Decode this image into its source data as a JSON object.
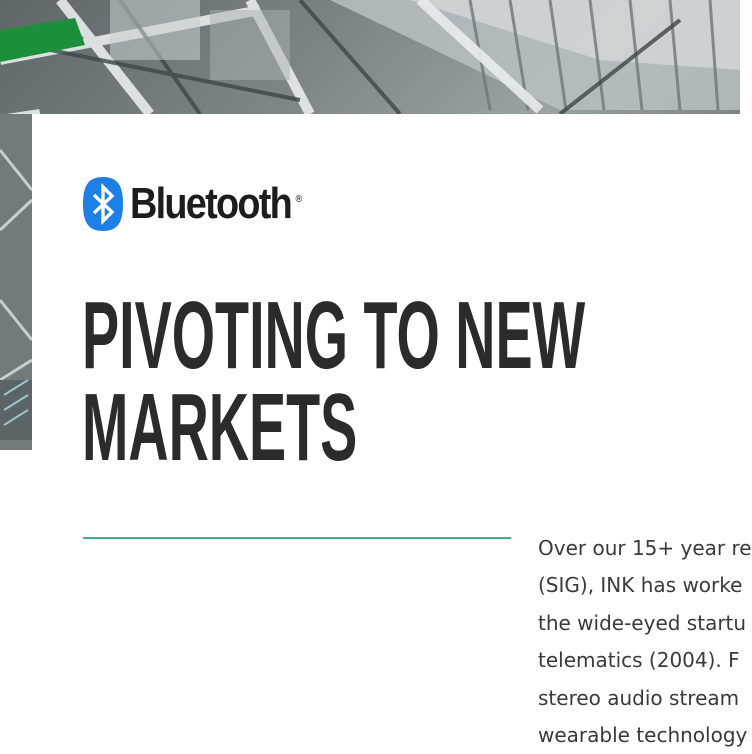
{
  "logo": {
    "brand_name": "Bluetooth",
    "registered_mark": "®",
    "accent_color": "#1e7fe6"
  },
  "headline": {
    "line1": "PIVOTING TO NEW",
    "line2": "MARKETS"
  },
  "divider": {
    "color": "#3fb08c"
  },
  "body": {
    "lines": [
      "Over our 15+ year re",
      "(SIG), INK has worke",
      "the wide-eyed startu",
      "telematics (2004). F",
      "stereo audio stream",
      "wearable technology"
    ]
  }
}
